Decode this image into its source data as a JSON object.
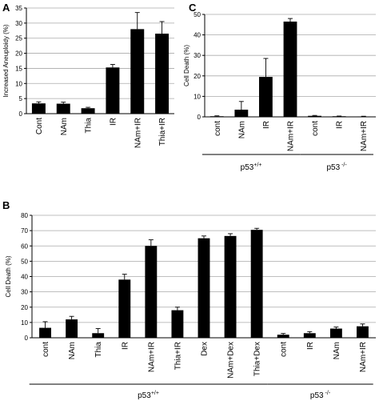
{
  "chart_data": [
    {
      "panel": "A",
      "type": "bar",
      "ylabel": "Increased Aneuploidy (%)",
      "ylim": [
        0,
        35
      ],
      "yticks": [
        0,
        5,
        10,
        15,
        20,
        25,
        30,
        35
      ],
      "grid": true,
      "categories": [
        "Cont",
        "NAm",
        "Thia",
        "IR",
        "NAm+IR",
        "Thia+IR"
      ],
      "values": [
        3.4,
        3.3,
        1.8,
        15.3,
        28.0,
        26.5
      ],
      "errors": [
        0.5,
        0.5,
        0.3,
        1.0,
        5.5,
        4.0
      ],
      "bar_color": "#000000"
    },
    {
      "panel": "C",
      "type": "bar",
      "ylabel": "Cell Death (%)",
      "ylim": [
        0,
        50
      ],
      "yticks": [
        0,
        10,
        20,
        30,
        40,
        50
      ],
      "grid": true,
      "categories": [
        "cont",
        "NAm",
        "IR",
        "NAm+IR",
        "cont",
        "IR",
        "NAm+IR"
      ],
      "values": [
        0.3,
        3.5,
        19.5,
        46.5,
        0.5,
        0.3,
        0.2
      ],
      "errors": [
        0.2,
        4.0,
        9.0,
        1.5,
        0.2,
        0.1,
        0.1
      ],
      "groups": [
        {
          "label": "p53",
          "sup": "+/+",
          "start": 0,
          "end": 3
        },
        {
          "label": "p53",
          "sup": " -/-",
          "start": 4,
          "end": 6
        }
      ],
      "bar_color": "#000000"
    },
    {
      "panel": "B",
      "type": "bar",
      "ylabel": "Cell Death (%)",
      "ylim": [
        0,
        80
      ],
      "yticks": [
        0,
        10,
        20,
        30,
        40,
        50,
        60,
        70,
        80
      ],
      "grid": true,
      "categories": [
        "cont",
        "NAm",
        "Thia",
        "IR",
        "NAm+IR",
        "Thia+IR",
        "Dex",
        "NAm+Dex",
        "Thia+Dex",
        "cont",
        "IR",
        "NAm",
        "NAm+IR"
      ],
      "values": [
        6.5,
        12.0,
        3.0,
        38.0,
        60.0,
        18.0,
        65.0,
        66.5,
        70.5,
        2.0,
        3.0,
        6.0,
        7.5
      ],
      "errors": [
        4.0,
        2.0,
        3.0,
        3.5,
        4.0,
        2.0,
        1.5,
        1.5,
        1.0,
        0.8,
        1.0,
        1.0,
        1.5
      ],
      "groups": [
        {
          "label": "p53",
          "sup": "+/+",
          "start": 0,
          "end": 8
        },
        {
          "label": "p53",
          "sup": " -/-",
          "start": 9,
          "end": 12
        }
      ],
      "bar_color": "#000000"
    }
  ]
}
